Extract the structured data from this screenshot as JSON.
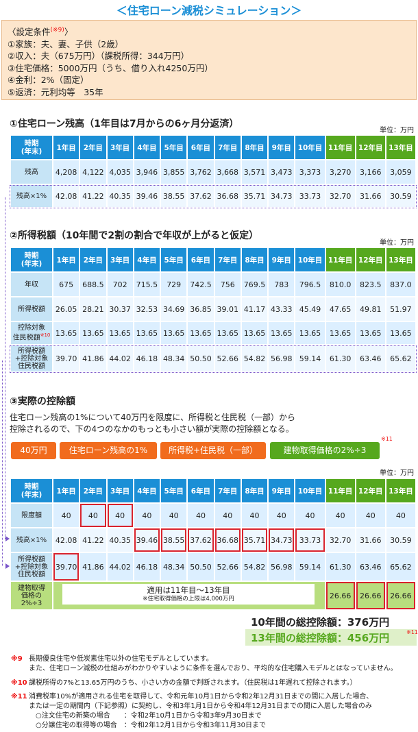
{
  "title": "＜住宅ローン減税シミュレーション＞",
  "conditions": {
    "heading": "〈設定条件",
    "mark": "(※9)",
    "heading_end": "〉",
    "lines": [
      "①家族：夫、妻、子供（2歳）",
      "②収入：夫（675万円）（課税所得：344万円）",
      "③住宅価格：5000万円（うち、借り入れ4250万円）",
      "④金利：2%（固定）",
      "⑤返済：元利均等　35年"
    ]
  },
  "years": [
    "1年目",
    "2年目",
    "3年目",
    "4年目",
    "5年目",
    "6年目",
    "7年目",
    "8年目",
    "9年目",
    "10年目",
    "11年目",
    "12年目",
    "13年目"
  ],
  "year_header": "時期\n(年末)",
  "unit": "単位：万円",
  "section1": {
    "title": "①住宅ローン残高（1年目は7月からの6ヶ月分返済）",
    "rows": [
      {
        "label": "残高",
        "values": [
          "4,208",
          "4,122",
          "4,035",
          "3,946",
          "3,855",
          "3,762",
          "3,668",
          "3,571",
          "3,473",
          "3,373",
          "3,270",
          "3,166",
          "3,059"
        ]
      },
      {
        "label": "残高×1%",
        "values": [
          "42.08",
          "41.22",
          "40.35",
          "39.46",
          "38.55",
          "37.62",
          "36.68",
          "35.71",
          "34.73",
          "33.73",
          "32.70",
          "31.66",
          "30.59"
        ]
      }
    ]
  },
  "section2": {
    "title": "②所得税額（10年間で2割の割合で年収が上がると仮定）",
    "rows": [
      {
        "label": "年収",
        "values": [
          "675",
          "688.5",
          "702",
          "715.5",
          "729",
          "742.5",
          "756",
          "769.5",
          "783",
          "796.5",
          "810.0",
          "823.5",
          "837.0"
        ]
      },
      {
        "label": "所得税額",
        "values": [
          "26.05",
          "28.21",
          "30.37",
          "32.53",
          "34.69",
          "36.85",
          "39.01",
          "41.17",
          "43.33",
          "45.49",
          "47.65",
          "49.81",
          "51.97"
        ]
      },
      {
        "label": "控除対象\n住民税額",
        "mark": "※10",
        "values": [
          "13.65",
          "13.65",
          "13.65",
          "13.65",
          "13.65",
          "13.65",
          "13.65",
          "13.65",
          "13.65",
          "13.65",
          "13.65",
          "13.65",
          "13.65"
        ]
      },
      {
        "label": "所得税額\n+控除対象\n住民税額",
        "values": [
          "39.70",
          "41.86",
          "44.02",
          "46.18",
          "48.34",
          "50.50",
          "52.66",
          "54.82",
          "56.98",
          "59.14",
          "61.30",
          "63.46",
          "65.62"
        ]
      }
    ]
  },
  "section3": {
    "title": "③実際の控除額",
    "para1": "住宅ローン残高の1%について40万円を限度に、所得税と住民税（一部）から",
    "para2": "控除されるので、下の4つのなかのもっとも小さい額が実際の控除額となる。",
    "pills": [
      "40万円",
      "住宅ローン残高の1%",
      "所得税+住民税（一部）",
      "建物取得価格の2%÷3"
    ],
    "pill_mark": "※11",
    "rows": [
      {
        "label": "限度額",
        "values": [
          "40",
          "40",
          "40",
          "40",
          "40",
          "40",
          "40",
          "40",
          "40",
          "40",
          "40",
          "40",
          "40"
        ]
      },
      {
        "label": "残高×1%",
        "values": [
          "42.08",
          "41.22",
          "40.35",
          "39.46",
          "38.55",
          "37.62",
          "36.68",
          "35.71",
          "34.73",
          "33.73",
          "32.70",
          "31.66",
          "30.59"
        ]
      },
      {
        "label": "所得税額\n+控除対象\n住民税額",
        "values": [
          "39.70",
          "41.86",
          "44.02",
          "46.18",
          "48.34",
          "50.50",
          "52.66",
          "54.82",
          "56.98",
          "59.14",
          "61.30",
          "63.46",
          "65.62"
        ]
      },
      {
        "label": "建物取得\n価格の\n2%÷3",
        "values": [
          "26.66",
          "26.66",
          "26.66"
        ]
      }
    ],
    "apply_text": "適用は11年目〜13年目",
    "apply_note": "※住宅取得価格の上限は4,000万円"
  },
  "totals": {
    "ten_years": "10年間の総控除額：376万円",
    "thirteen_years": "13年間の総控除額：456万円",
    "mark": "※11"
  },
  "footnotes": [
    {
      "mark": "※9",
      "lines": [
        "長期優良住宅や低炭素住宅以外の住宅モデルとしています。",
        "また、住宅ローン減税の仕組みがわかりやすいように条件を選んでおり、平均的な住宅購入モデルとはなっていません。"
      ]
    },
    {
      "mark": "※10",
      "lines": [
        "課税所得の7%と13.65万円のうち、小さい方の金額で判断されます。（住民税は1年遅れて控除されます。）"
      ]
    },
    {
      "mark": "※11",
      "lines": [
        "消費税率10%が適用される住宅を取得して、令和元年10月1日から令和2年12月31日までの間に入居した場合、",
        "または一定の期間内（下記参照）に契約し、令和3年1月1日から令和4年12月31日までの間に入居した場合のみ",
        "　○注文住宅の新築の場合　　：令和2年10月1日から令和3年9月30日まで",
        "　○分譲住宅の取得等の場合　：令和2年12月1日から令和3年11月30日まで"
      ]
    }
  ]
}
